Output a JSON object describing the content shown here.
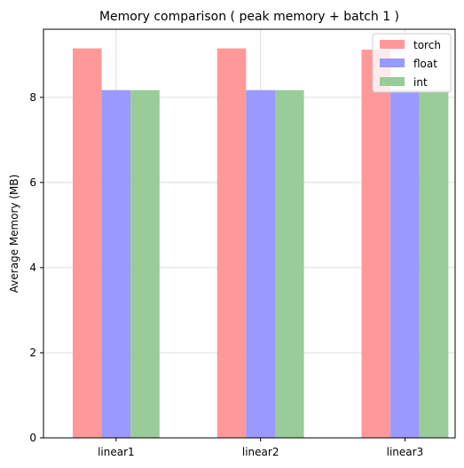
{
  "chart_data": {
    "type": "bar",
    "title": "Memory comparison ( peak memory + batch 1 )",
    "xlabel": "",
    "ylabel": "Average Memory (MB)",
    "categories": [
      "linear1",
      "linear2",
      "linear3"
    ],
    "series": [
      {
        "name": "torch",
        "values": [
          9.15,
          9.15,
          9.12
        ],
        "color": "#ff9999"
      },
      {
        "name": "float",
        "values": [
          8.17,
          8.17,
          8.17
        ],
        "color": "#9999ff"
      },
      {
        "name": "int",
        "values": [
          8.17,
          8.17,
          8.17
        ],
        "color": "#99cc99"
      }
    ],
    "ylim": [
      0,
      9.6
    ],
    "yticks": [
      0,
      2,
      4,
      6,
      8
    ],
    "grid": true,
    "legend_position": "top-right"
  }
}
